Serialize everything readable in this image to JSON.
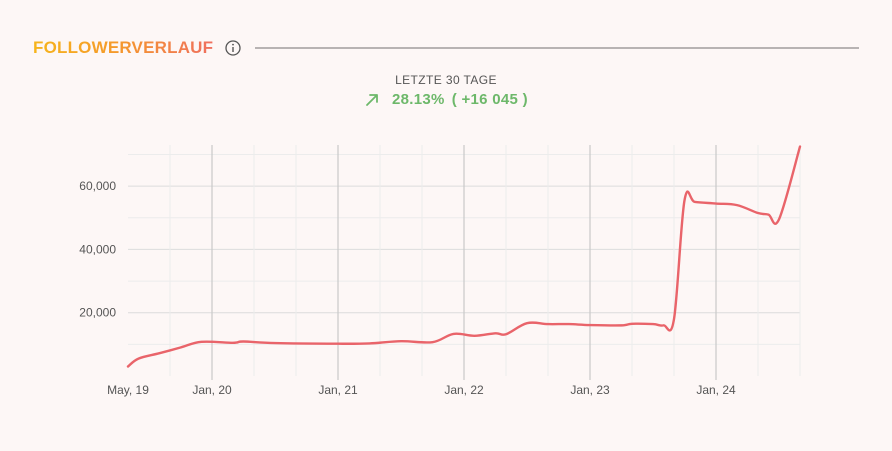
{
  "header": {
    "title": "FOLLOWERVERLAUF",
    "title_gradient": [
      "#f6b51c",
      "#ef6f5e"
    ],
    "info_icon": "info-circle-icon"
  },
  "summary": {
    "period_label": "LETZTE 30 TAGE",
    "trend_icon": "arrow-up-right-icon",
    "percent": "28.13%",
    "absolute": "( +16 045 )",
    "color": "#6db86a"
  },
  "chart_data": {
    "type": "line",
    "title": "",
    "xlabel": "",
    "ylabel": "",
    "x_tick_labels": [
      "May, 19",
      "Jan, 20",
      "Jan, 21",
      "Jan, 22",
      "Jan, 23",
      "Jan, 24"
    ],
    "x_ticks": [
      "2019-05",
      "2020-01",
      "2021-01",
      "2022-01",
      "2023-01",
      "2024-01"
    ],
    "xlim": [
      "2019-05",
      "2024-09"
    ],
    "y_tick_labels": [
      "20,000",
      "40,000",
      "60,000"
    ],
    "y_ticks": [
      20000,
      40000,
      60000
    ],
    "ylim": [
      0,
      73000
    ],
    "grid": true,
    "line_color": "#e9646a",
    "series": [
      {
        "values": [
          {
            "x": "2019-05",
            "y": 3000
          },
          {
            "x": "2019-06",
            "y": 5500
          },
          {
            "x": "2019-08",
            "y": 7200
          },
          {
            "x": "2019-10",
            "y": 9000
          },
          {
            "x": "2019-12",
            "y": 10800
          },
          {
            "x": "2020-03",
            "y": 10500
          },
          {
            "x": "2020-04",
            "y": 10900
          },
          {
            "x": "2020-07",
            "y": 10400
          },
          {
            "x": "2021-01",
            "y": 10200
          },
          {
            "x": "2021-04",
            "y": 10300
          },
          {
            "x": "2021-07",
            "y": 11000
          },
          {
            "x": "2021-10",
            "y": 10700
          },
          {
            "x": "2021-12",
            "y": 13300
          },
          {
            "x": "2022-02",
            "y": 12700
          },
          {
            "x": "2022-04",
            "y": 13500
          },
          {
            "x": "2022-05",
            "y": 13200
          },
          {
            "x": "2022-07",
            "y": 16700
          },
          {
            "x": "2022-09",
            "y": 16400
          },
          {
            "x": "2022-11",
            "y": 16400
          },
          {
            "x": "2023-01",
            "y": 16100
          },
          {
            "x": "2023-04",
            "y": 16000
          },
          {
            "x": "2023-05",
            "y": 16500
          },
          {
            "x": "2023-07",
            "y": 16400
          },
          {
            "x": "2023-08",
            "y": 16000
          },
          {
            "x": "2023-09",
            "y": 18000
          },
          {
            "x": "2023-10",
            "y": 55500
          },
          {
            "x": "2023-11",
            "y": 55000
          },
          {
            "x": "2024-01",
            "y": 54500
          },
          {
            "x": "2024-03",
            "y": 54000
          },
          {
            "x": "2024-05",
            "y": 51500
          },
          {
            "x": "2024-06",
            "y": 51000
          },
          {
            "x": "2024-07",
            "y": 49500
          },
          {
            "x": "2024-09",
            "y": 72500
          }
        ]
      }
    ]
  }
}
